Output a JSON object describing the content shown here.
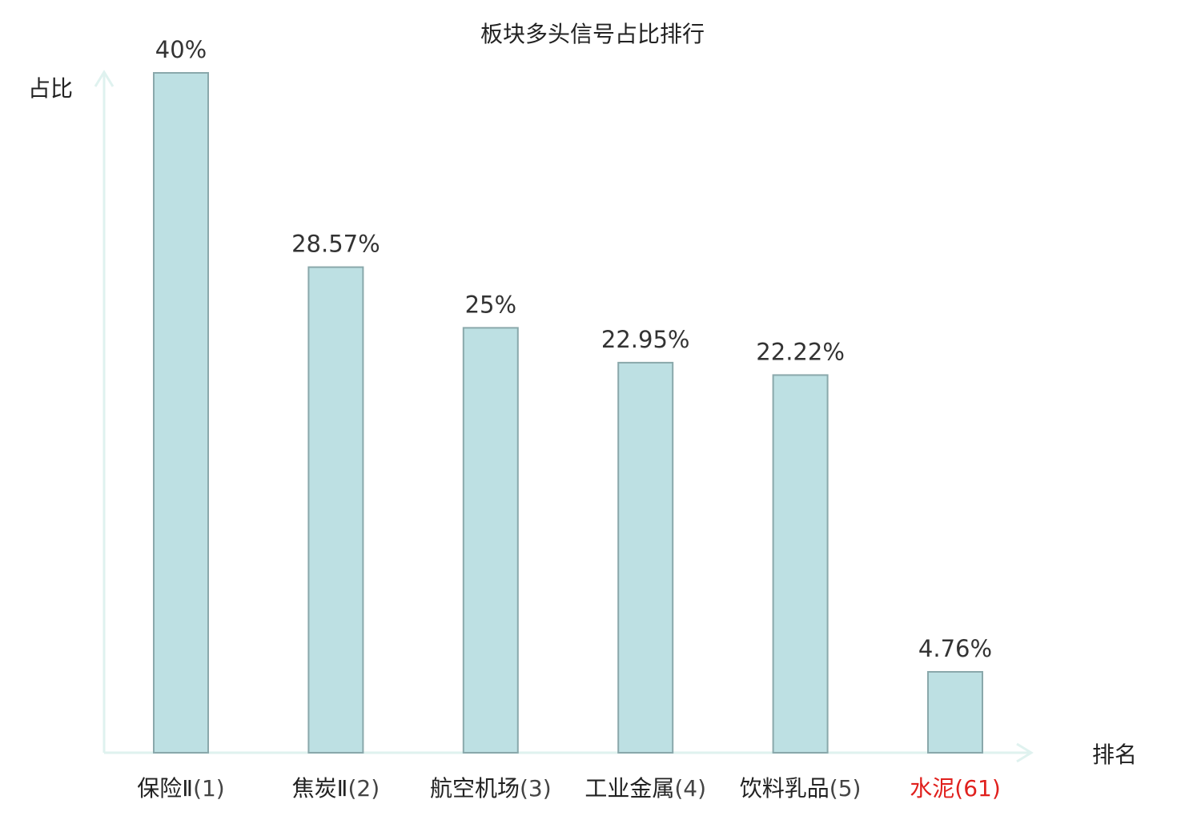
{
  "chart_data": {
    "type": "bar",
    "title": "板块多头信号占比排行",
    "ylabel": "占比",
    "xlabel": "排名",
    "ylim": [
      0,
      40
    ],
    "grid": false,
    "categories": [
      {
        "name": "保险Ⅱ",
        "rank": "(1)",
        "highlight": false
      },
      {
        "name": "焦炭Ⅱ",
        "rank": "(2)",
        "highlight": false
      },
      {
        "name": "航空机场",
        "rank": "(3)",
        "highlight": false
      },
      {
        "name": "工业金属",
        "rank": "(4)",
        "highlight": false
      },
      {
        "name": "饮料乳品",
        "rank": "(5)",
        "highlight": false
      },
      {
        "name": "水泥",
        "rank": "(61)",
        "highlight": true
      }
    ],
    "values": [
      40,
      28.57,
      25,
      22.95,
      22.22,
      4.76
    ],
    "value_labels": [
      "40%",
      "28.57%",
      "25%",
      "22.95%",
      "22.22%",
      "4.76%"
    ],
    "colors": {
      "bar_fill": "#bde0e3",
      "bar_stroke": "#8aa8ab",
      "axis": "#dff2ef",
      "text": "#222222",
      "value_text": "#333333",
      "rank_text": "#444444",
      "highlight": "#e0201d"
    }
  }
}
